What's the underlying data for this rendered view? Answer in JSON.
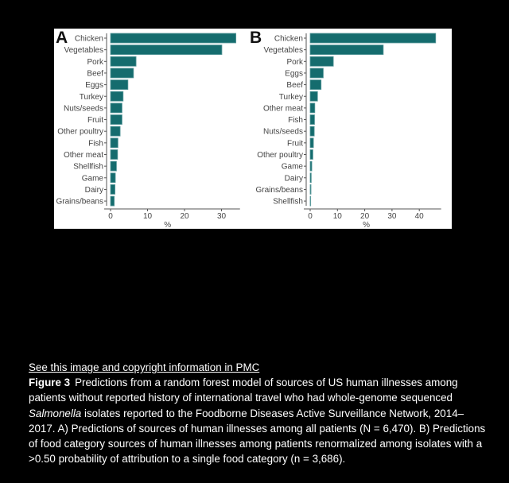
{
  "caption": {
    "link": "See this image and copyright information in PMC",
    "figure_label": "Figure 3",
    "text_1": "Predictions from a random forest model of sources of US human illnesses among patients without reported history of international travel who had whole-genome sequenced ",
    "italic": "Salmonella",
    "text_2": " isolates reported to the Foodborne Diseases Active Surveillance Network, 2014–2017. A) Predictions of sources of human illnesses among all patients (N = 6,470). B) Predictions of food category sources of human illnesses among patients renormalized among isolates with a >0.50 probability of attribution to a single food category (n = 3,686)."
  },
  "colors": {
    "bar": "#156c6e",
    "bar_edge": "#5a9a9c"
  },
  "chart_data": [
    {
      "type": "bar",
      "orientation": "horizontal",
      "panel": "A",
      "xlabel": "%",
      "xlim": [
        0,
        35
      ],
      "xticks": [
        0,
        10,
        20,
        30
      ],
      "grid": false,
      "categories": [
        "Chicken",
        "Vegetables",
        "Pork",
        "Beef",
        "Eggs",
        "Turkey",
        "Nuts/seeds",
        "Fruit",
        "Other poultry",
        "Fish",
        "Other meat",
        "Shellfish",
        "Game",
        "Dairy",
        "Grains/beans"
      ],
      "values": [
        33.9,
        30.1,
        6.9,
        6.2,
        4.7,
        3.4,
        3.1,
        3.1,
        2.6,
        2.0,
        1.9,
        1.6,
        1.3,
        1.2,
        1.0
      ]
    },
    {
      "type": "bar",
      "orientation": "horizontal",
      "panel": "B",
      "xlabel": "%",
      "xlim": [
        0,
        48
      ],
      "xticks": [
        0,
        10,
        20,
        30,
        40
      ],
      "grid": false,
      "categories": [
        "Chicken",
        "Vegetables",
        "Pork",
        "Eggs",
        "Beef",
        "Turkey",
        "Other meat",
        "Fish",
        "Nuts/seeds",
        "Fruit",
        "Other poultry",
        "Game",
        "Dairy",
        "Grains/beans",
        "Shellfish"
      ],
      "values": [
        46.0,
        26.8,
        8.5,
        4.8,
        4.0,
        2.7,
        1.7,
        1.6,
        1.5,
        1.2,
        1.0,
        0.6,
        0.4,
        0.3,
        0.2
      ]
    }
  ]
}
